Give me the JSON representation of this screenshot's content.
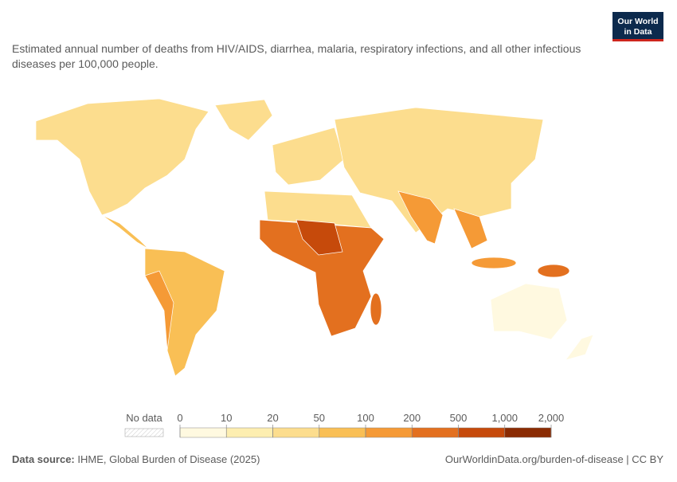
{
  "header": {
    "subtitle": "Estimated annual number of deaths from HIV/AIDS, diarrhea, malaria, respiratory infections, and all other infectious diseases per 100,000 people.",
    "logo": [
      "Our World",
      "in Data"
    ]
  },
  "map": {
    "type": "choropleth",
    "legend": {
      "no_data_label": "No data",
      "bins": [
        0,
        10,
        20,
        50,
        100,
        200,
        500,
        {
          "value": 1000,
          "label": "1,000"
        },
        {
          "value": 2000,
          "label": "2,000"
        }
      ],
      "colors": [
        "#fff9e0",
        "#fdeeb0",
        "#fcdd8e",
        "#f9bf55",
        "#f59a36",
        "#e3701f",
        "#c64a0b",
        "#8a2b03"
      ]
    }
  },
  "footer": {
    "source_label": "Data source:",
    "source": "IHME, Global Burden of Disease (2025)",
    "link": "OurWorldinData.org/burden-of-disease | CC BY"
  }
}
